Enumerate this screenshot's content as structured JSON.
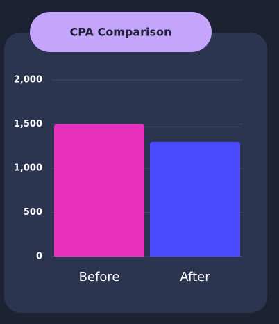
{
  "chart_data": {
    "type": "bar",
    "title": "CPA Comparison",
    "categories": [
      "Before",
      "After"
    ],
    "values": [
      1500,
      1300
    ],
    "colors": [
      "#e831bd",
      "#4a4aff"
    ],
    "ylim": [
      0,
      2000
    ],
    "yticks": [
      0,
      500,
      {
        "value": 1000,
        "label": "1,000"
      },
      {
        "value": 1500,
        "label": "1,500"
      },
      {
        "value": 2000,
        "label": "2,000"
      }
    ],
    "grid": true
  }
}
